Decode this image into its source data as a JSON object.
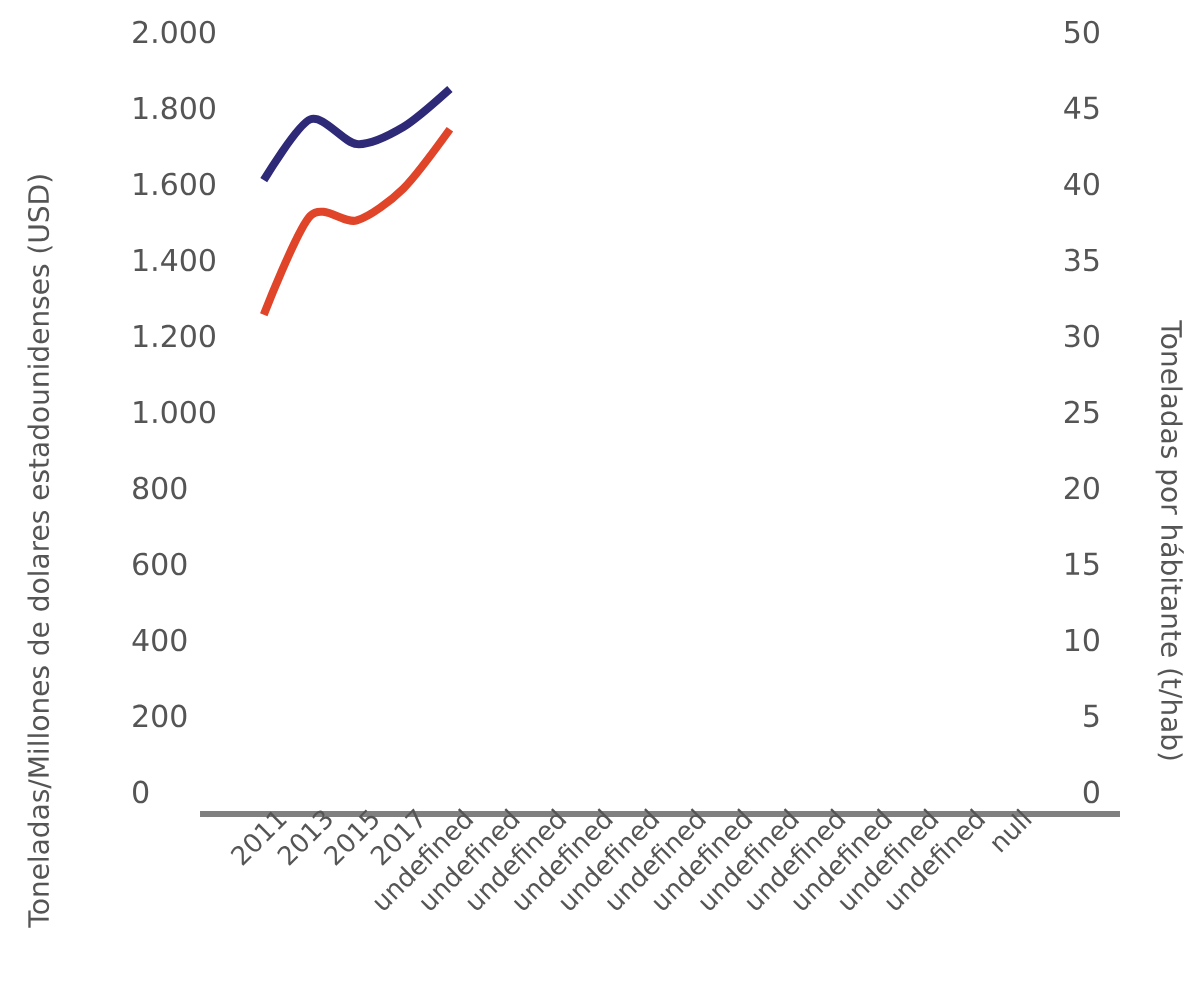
{
  "chart_data": {
    "type": "line",
    "ylabel": "Toneladas/Millones de dolares estadounidenses (USD)",
    "y2label": "Toneladas por hábitante (t/hab)",
    "categories": [
      "2011",
      "2013",
      "2015",
      "2017",
      "undefined",
      "undefined",
      "undefined",
      "undefined",
      "undefined",
      "undefined",
      "undefined",
      "undefined",
      "undefined",
      "undefined",
      "undefined",
      "undefined",
      "null"
    ],
    "ylim": [
      0,
      2000
    ],
    "yticks": [
      0,
      200,
      400,
      600,
      800,
      {
        "value": 1000,
        "label": "1.000"
      },
      {
        "value": 1200,
        "label": "1.200"
      },
      {
        "value": 1400,
        "label": "1.400"
      },
      {
        "value": 1600,
        "label": "1.600"
      },
      {
        "value": 1800,
        "label": "1.800"
      },
      {
        "value": 2000,
        "label": "2.000"
      }
    ],
    "y2lim": [
      0,
      50
    ],
    "y2ticks": [
      0,
      5,
      10,
      15,
      20,
      25,
      30,
      35,
      40,
      45,
      50
    ],
    "series": [
      {
        "color": "#2e2a78",
        "values": [
          1610,
          1770,
          1705,
          1750,
          1850,
          null,
          null,
          null,
          null,
          null,
          null,
          null,
          null,
          null,
          null,
          null,
          null
        ]
      },
      {
        "color": "#e0452a",
        "axis": "y2",
        "values": [
          31.4,
          37.9,
          37.6,
          39.7,
          43.6,
          null,
          null,
          null,
          null,
          null,
          null,
          null,
          null,
          null,
          null,
          null,
          null
        ]
      }
    ]
  }
}
